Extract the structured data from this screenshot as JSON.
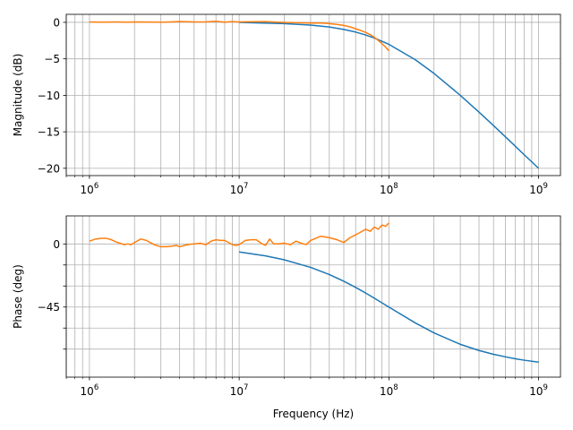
{
  "chart_data": [
    {
      "type": "line",
      "xlabel": "",
      "ylabel": "Magnitude (dB)",
      "xscale": "log",
      "xlim": [
        700000,
        1400000000
      ],
      "ylim": [
        -21,
        1.1
      ],
      "xticks": [
        {
          "mantissa": "10",
          "exponent": "6"
        },
        {
          "mantissa": "10",
          "exponent": "7"
        },
        {
          "mantissa": "10",
          "exponent": "8"
        },
        {
          "mantissa": "10",
          "exponent": "9"
        }
      ],
      "yticks": [
        {
          "value": 0,
          "label": "0"
        },
        {
          "value": -5,
          "label": "−5"
        },
        {
          "value": -10,
          "label": "−10"
        },
        {
          "value": -15,
          "label": "−15"
        },
        {
          "value": -20,
          "label": "−20"
        }
      ],
      "grid": true,
      "series": [
        {
          "color": "#1f77b4",
          "x": [
            10000000,
            20000000,
            30000000,
            40000000,
            50000000,
            60000000,
            70000000,
            80000000,
            100000000,
            150000000,
            200000000,
            300000000,
            400000000,
            500000000,
            600000000,
            700000000,
            800000000,
            1000000000
          ],
          "y": [
            0.0,
            -0.17,
            -0.37,
            -0.64,
            -0.97,
            -1.33,
            -1.73,
            -2.15,
            -3.01,
            -5.12,
            -6.99,
            -10.0,
            -12.3,
            -14.15,
            -15.68,
            -16.99,
            -18.13,
            -20.0
          ]
        },
        {
          "color": "#ff7f0e",
          "x": [
            1000000,
            1200000,
            1500000,
            1800000,
            2000000,
            2500000,
            3000000,
            3500000,
            4000000,
            5000000,
            6000000,
            7000000,
            8000000,
            9000000,
            10000000,
            12000000,
            15000000,
            18000000,
            20000000,
            25000000,
            30000000,
            35000000,
            40000000,
            45000000,
            50000000,
            55000000,
            60000000,
            65000000,
            70000000,
            75000000,
            80000000,
            85000000,
            90000000,
            95000000,
            100000000
          ],
          "y": [
            0.05,
            0.02,
            0.06,
            0.03,
            0.05,
            0.04,
            0.02,
            0.06,
            0.12,
            0.05,
            0.07,
            0.15,
            0.03,
            0.1,
            0.05,
            0.08,
            0.1,
            0.02,
            0.0,
            -0.05,
            -0.1,
            -0.08,
            -0.18,
            -0.28,
            -0.42,
            -0.62,
            -0.88,
            -1.12,
            -1.38,
            -1.68,
            -2.05,
            -2.48,
            -2.92,
            -3.38,
            -3.9
          ]
        }
      ]
    },
    {
      "type": "line",
      "xlabel": "Frequency (Hz)",
      "ylabel": "Phase (deg)",
      "xscale": "log",
      "xlim": [
        700000,
        1400000000
      ],
      "ylim": [
        -95,
        20
      ],
      "xticks": [
        {
          "mantissa": "10",
          "exponent": "6"
        },
        {
          "mantissa": "10",
          "exponent": "7"
        },
        {
          "mantissa": "10",
          "exponent": "8"
        },
        {
          "mantissa": "10",
          "exponent": "9"
        }
      ],
      "yticks": [
        {
          "value": 0,
          "label": "0"
        },
        {
          "value": -15,
          "label": ""
        },
        {
          "value": -30,
          "label": ""
        },
        {
          "value": -45,
          "label": "−45"
        },
        {
          "value": -60,
          "label": ""
        },
        {
          "value": -75,
          "label": ""
        }
      ],
      "grid": true,
      "series": [
        {
          "color": "#1f77b4",
          "x": [
            10000000,
            15000000,
            20000000,
            30000000,
            40000000,
            50000000,
            60000000,
            70000000,
            80000000,
            100000000,
            150000000,
            200000000,
            300000000,
            400000000,
            500000000,
            600000000,
            700000000,
            800000000,
            1000000000
          ],
          "y": [
            -5.7,
            -8.5,
            -11.3,
            -16.7,
            -21.8,
            -26.6,
            -31.0,
            -35.0,
            -38.7,
            -45.0,
            -56.3,
            -63.4,
            -71.6,
            -76.0,
            -78.7,
            -80.5,
            -81.9,
            -82.9,
            -84.3
          ]
        },
        {
          "color": "#ff7f0e",
          "x": [
            1000000,
            1100000,
            1200000,
            1300000,
            1400000,
            1500000,
            1600000,
            1700000,
            1800000,
            1900000,
            2000000,
            2200000,
            2400000,
            2700000,
            3000000,
            3300000,
            3600000,
            3800000,
            4000000,
            4500000,
            5000000,
            5500000,
            6000000,
            6500000,
            7000000,
            7500000,
            8000000,
            8500000,
            9000000,
            9500000,
            10000000,
            11000000,
            12000000,
            13000000,
            14000000,
            15000000,
            16000000,
            17000000,
            18000000,
            20000000,
            22000000,
            24000000,
            26000000,
            28000000,
            30000000,
            35000000,
            40000000,
            45000000,
            50000000,
            55000000,
            60000000,
            65000000,
            70000000,
            75000000,
            80000000,
            85000000,
            90000000,
            95000000,
            100000000
          ],
          "y": [
            2,
            3.5,
            4,
            4,
            3,
            1.5,
            0.5,
            -0.5,
            0,
            -0.5,
            1,
            3.5,
            2.5,
            -0.5,
            -2,
            -2,
            -1.5,
            -1,
            -2,
            -0.5,
            0,
            0.5,
            -0.5,
            2,
            3,
            2.5,
            2.5,
            1,
            -0.5,
            -1,
            -0.5,
            2.5,
            3,
            3,
            0.5,
            -1,
            3.5,
            0,
            0,
            0.5,
            -0.5,
            2,
            0.5,
            -0.5,
            2.5,
            5.5,
            4.5,
            3,
            1,
            4.5,
            6.5,
            8.5,
            10.5,
            9,
            12,
            10.5,
            13.5,
            12.5,
            15
          ]
        }
      ]
    }
  ]
}
